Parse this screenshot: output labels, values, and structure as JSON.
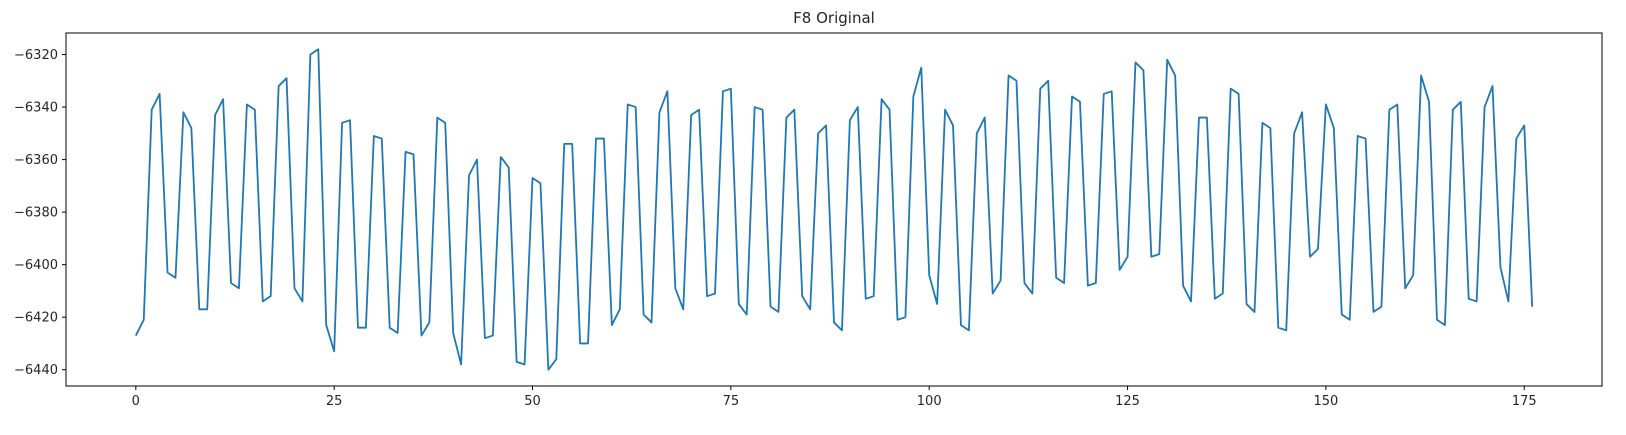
{
  "chart_data": {
    "type": "line",
    "title": "F8 Original",
    "xlabel": "",
    "ylabel": "",
    "xlim": [
      -8.8,
      184.8
    ],
    "ylim": [
      -6446.2,
      -6311.8
    ],
    "grid": false,
    "xticks": [
      0,
      25,
      50,
      75,
      100,
      125,
      150,
      175
    ],
    "yticks": [
      -6440,
      -6420,
      -6400,
      -6380,
      -6360,
      -6340,
      -6320
    ],
    "series": [
      {
        "color": "#1f77b4",
        "x": [
          0,
          1,
          2,
          3,
          4,
          5,
          6,
          7,
          8,
          9,
          10,
          11,
          12,
          13,
          14,
          15,
          16,
          17,
          18,
          19,
          20,
          21,
          22,
          23,
          24,
          25,
          26,
          27,
          28,
          29,
          30,
          31,
          32,
          33,
          34,
          35,
          36,
          37,
          38,
          39,
          40,
          41,
          42,
          43,
          44,
          45,
          46,
          47,
          48,
          49,
          50,
          51,
          52,
          53,
          54,
          55,
          56,
          57,
          58,
          59,
          60,
          61,
          62,
          63,
          64,
          65,
          66,
          67,
          68,
          69,
          70,
          71,
          72,
          73,
          74,
          75,
          76,
          77,
          78,
          79,
          80,
          81,
          82,
          83,
          84,
          85,
          86,
          87,
          88,
          89,
          90,
          91,
          92,
          93,
          94,
          95,
          96,
          97,
          98,
          99,
          100,
          101,
          102,
          103,
          104,
          105,
          106,
          107,
          108,
          109,
          110,
          111,
          112,
          113,
          114,
          115,
          116,
          117,
          118,
          119,
          120,
          121,
          122,
          123,
          124,
          125,
          126,
          127,
          128,
          129,
          130,
          131,
          132,
          133,
          134,
          135,
          136,
          137,
          138,
          139,
          140,
          141,
          142,
          143,
          144,
          145,
          146,
          147,
          148,
          149,
          150,
          151,
          152,
          153,
          154,
          155,
          156,
          157,
          158,
          159,
          160,
          161,
          162,
          163,
          164,
          165,
          166,
          167,
          168,
          169,
          170,
          171,
          172,
          173,
          174,
          175,
          176
        ],
        "values": [
          -6427,
          -6421,
          -6341,
          -6335,
          -6403,
          -6405,
          -6342,
          -6348,
          -6417,
          -6417,
          -6343,
          -6337,
          -6407,
          -6409,
          -6339,
          -6341,
          -6414,
          -6412,
          -6332,
          -6329,
          -6409,
          -6414,
          -6320,
          -6318,
          -6423,
          -6433,
          -6346,
          -6345,
          -6424,
          -6424,
          -6351,
          -6352,
          -6424,
          -6426,
          -6357,
          -6358,
          -6427,
          -6422,
          -6344,
          -6346,
          -6426,
          -6438,
          -6366,
          -6360,
          -6428,
          -6427,
          -6359,
          -6363,
          -6437,
          -6438,
          -6367,
          -6369,
          -6440,
          -6436,
          -6354,
          -6354,
          -6430,
          -6430,
          -6352,
          -6352,
          -6423,
          -6417,
          -6339,
          -6340,
          -6419,
          -6422,
          -6342,
          -6334,
          -6409,
          -6417,
          -6343,
          -6341,
          -6412,
          -6411,
          -6334,
          -6333,
          -6415,
          -6419,
          -6340,
          -6341,
          -6416,
          -6418,
          -6344,
          -6341,
          -6412,
          -6417,
          -6350,
          -6347,
          -6422,
          -6425,
          -6345,
          -6340,
          -6413,
          -6412,
          -6337,
          -6341,
          -6421,
          -6420,
          -6336,
          -6325,
          -6404,
          -6415,
          -6341,
          -6347,
          -6423,
          -6425,
          -6350,
          -6344,
          -6411,
          -6406,
          -6328,
          -6330,
          -6407,
          -6411,
          -6333,
          -6330,
          -6405,
          -6407,
          -6336,
          -6338,
          -6408,
          -6407,
          -6335,
          -6334,
          -6402,
          -6397,
          -6323,
          -6326,
          -6397,
          -6396,
          -6322,
          -6328,
          -6408,
          -6414,
          -6344,
          -6344,
          -6413,
          -6411,
          -6333,
          -6335,
          -6415,
          -6418,
          -6346,
          -6348,
          -6424,
          -6425,
          -6350,
          -6342,
          -6397,
          -6394,
          -6339,
          -6348,
          -6419,
          -6421,
          -6351,
          -6352,
          -6418,
          -6416,
          -6341,
          -6339,
          -6409,
          -6404,
          -6328,
          -6338,
          -6421,
          -6423,
          -6341,
          -6338,
          -6413,
          -6414,
          -6340,
          -6332,
          -6401,
          -6414,
          -6352,
          -6347,
          -6416
        ]
      }
    ]
  }
}
